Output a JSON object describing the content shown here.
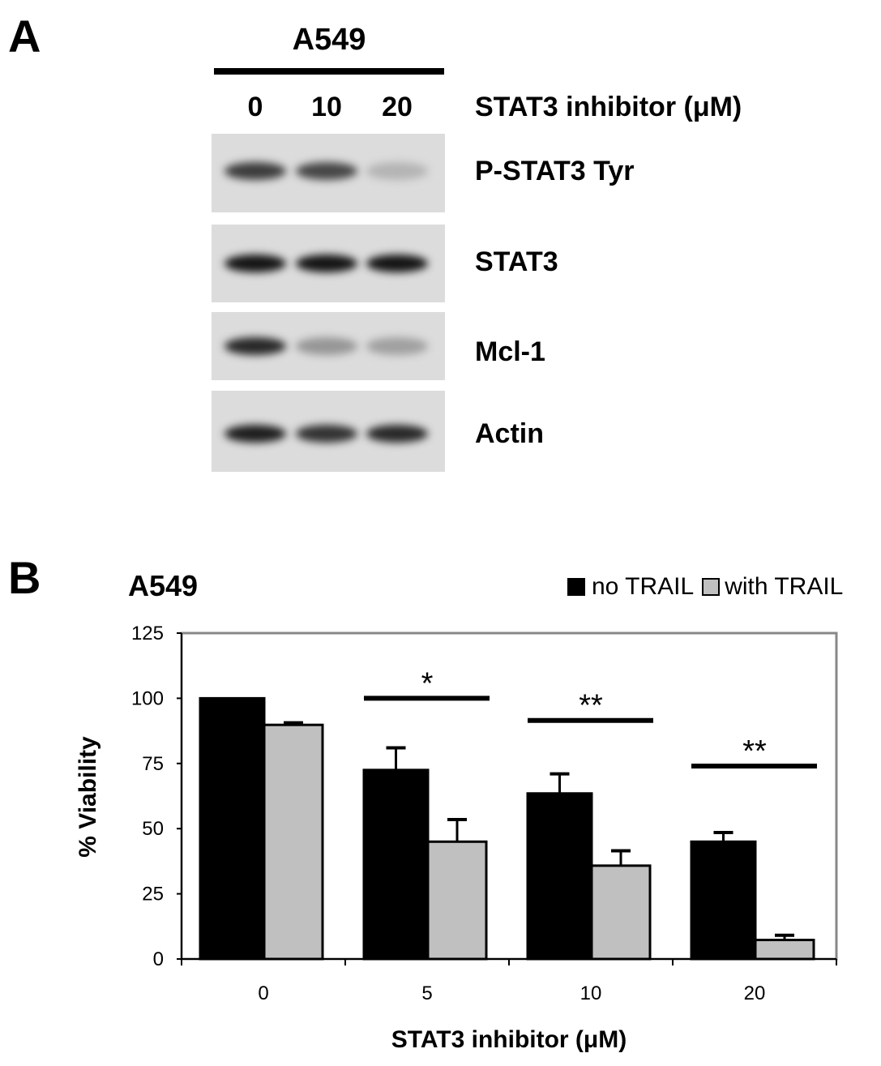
{
  "panel_a": {
    "letter": "A",
    "cell_line": "A549",
    "treatment_label": "STAT3 inhibitor (μM)",
    "lanes": [
      "0",
      "10",
      "20"
    ],
    "blots": [
      {
        "label": "P-STAT3 Tyr",
        "band_intensity": [
          0.8,
          0.75,
          0.2
        ]
      },
      {
        "label": "STAT3",
        "band_intensity": [
          1.0,
          1.0,
          1.0
        ]
      },
      {
        "label": "Mcl-1",
        "band_intensity": [
          0.9,
          0.35,
          0.3
        ]
      },
      {
        "label": "Actin",
        "band_intensity": [
          0.95,
          0.85,
          0.9
        ]
      }
    ]
  },
  "panel_b": {
    "letter": "B"
  },
  "chart_data": {
    "type": "bar",
    "title": "A549",
    "xlabel": "STAT3 inhibitor (μM)",
    "ylabel": "% Viability",
    "ylim": [
      0,
      125
    ],
    "yticks": [
      "0",
      "25",
      "50",
      "75",
      "100",
      "125"
    ],
    "categories": [
      "0",
      "5",
      "10",
      "20"
    ],
    "legend_position": "top-right",
    "grid": false,
    "series": [
      {
        "name": "no TRAIL",
        "color": "#000000",
        "values": [
          100,
          72.5,
          63.5,
          45
        ],
        "errors": [
          0,
          8.5,
          7.5,
          3.5
        ]
      },
      {
        "name": "with TRAIL",
        "color": "#c0c0c0",
        "values": [
          89.8,
          45,
          35.8,
          7.3
        ],
        "errors": [
          0.8,
          8.5,
          5.7,
          1.8
        ]
      }
    ],
    "annotations": [
      {
        "category": "5",
        "text": "*",
        "y": 100
      },
      {
        "category": "10",
        "text": "**",
        "y": 91.5
      },
      {
        "category": "20",
        "text": "**",
        "y": 74
      }
    ]
  }
}
